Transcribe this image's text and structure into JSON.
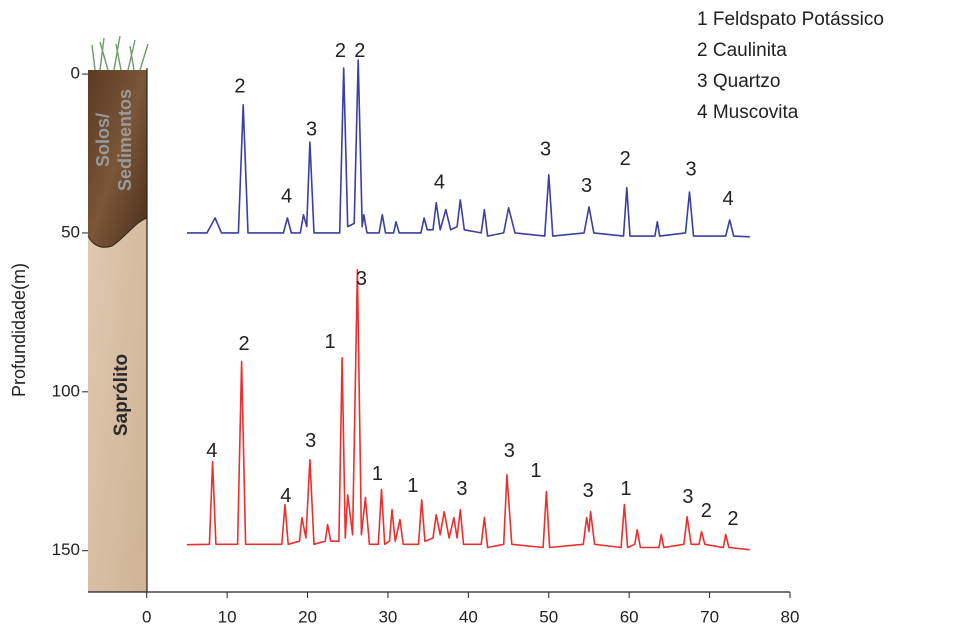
{
  "chart_data": {
    "type": "line",
    "y_label": "Profundidade(m)",
    "xlim": [
      -7.3,
      80
    ],
    "ylim": [
      -6,
      163
    ],
    "xticks": [
      0,
      10,
      20,
      30,
      40,
      50,
      60,
      70,
      80
    ],
    "yticks": [
      0,
      50,
      100,
      150
    ],
    "key": [
      "1 Feldspato Potássico",
      "2 Caulinita",
      "3 Quartzo",
      "4 Muscovita"
    ],
    "profile_labels": [
      "Solos/",
      "Sedimentos",
      "Saprólito"
    ],
    "series": [
      {
        "color": "#3a3fa0",
        "x": [
          5,
          7.5,
          8.5,
          9.3,
          11.4,
          12,
          12.6,
          17,
          17.5,
          18,
          19.1,
          19.5,
          19.9,
          20.3,
          20.8,
          24,
          24.5,
          25,
          25.8,
          26.3,
          26.8,
          27,
          27.4,
          28.9,
          29.3,
          29.7,
          30.7,
          31,
          31.4,
          34.1,
          34.5,
          34.9,
          35.6,
          36,
          36.5,
          37.2,
          37.8,
          38.6,
          39,
          39.5,
          41.6,
          42,
          42.4,
          44.4,
          45,
          45.8,
          49.5,
          50,
          50.5,
          54.4,
          55,
          55.6,
          59.3,
          59.7,
          60.1,
          63.2,
          63.5,
          63.8,
          67,
          67.5,
          68,
          72,
          72.5,
          73,
          75
        ],
        "values": [
          50,
          50,
          45.3,
          50,
          50,
          9.7,
          50,
          50,
          45.3,
          50,
          50,
          44.3,
          48,
          21.4,
          50,
          50,
          -1.9,
          48,
          47,
          -4.4,
          48,
          44.3,
          50,
          50,
          44.3,
          50,
          50,
          46.5,
          50,
          50,
          45.3,
          49,
          49,
          40.5,
          49,
          42.7,
          49,
          48,
          39.6,
          49,
          50,
          42.7,
          51,
          50,
          42.1,
          50,
          51,
          31.7,
          51,
          50,
          41.8,
          50,
          51,
          35.8,
          51,
          51,
          46.5,
          51,
          50,
          37.1,
          51,
          51,
          45.9,
          51,
          51.2
        ]
      },
      {
        "color": "#e8312f",
        "x": [
          5,
          7.8,
          8.2,
          8.6,
          11.3,
          11.8,
          12.3,
          16.8,
          17.2,
          17.6,
          19,
          19.3,
          19.8,
          20.3,
          20.8,
          22.2,
          22.5,
          22.9,
          23.9,
          24.3,
          24.7,
          25,
          25.6,
          26.2,
          26.7,
          27.2,
          27.7,
          28.8,
          29.2,
          29.6,
          30.2,
          30.5,
          30.9,
          31.5,
          31.9,
          33.8,
          34.2,
          34.6,
          35.6,
          36,
          36.5,
          37,
          37.6,
          38.2,
          38.6,
          39,
          39.4,
          41.6,
          42,
          42.4,
          44.4,
          44.8,
          45.4,
          49.3,
          49.7,
          50.1,
          54.3,
          54.7,
          55,
          55.2,
          55.7,
          59,
          59.4,
          59.8,
          60.7,
          61,
          61.4,
          63.7,
          64,
          64.3,
          66.8,
          67.2,
          67.7,
          68.7,
          69,
          69.4,
          71.7,
          72,
          72.4,
          75
        ],
        "values": [
          148.1,
          148,
          122,
          148,
          148,
          90.5,
          148,
          148,
          135.5,
          148,
          147,
          139.6,
          146,
          121.4,
          148,
          147,
          141.8,
          147,
          147,
          89.3,
          146,
          132.4,
          145,
          61.6,
          145,
          133.3,
          148,
          148,
          130.8,
          148,
          147,
          137.1,
          147,
          140.2,
          148,
          148,
          134,
          147,
          146,
          138.7,
          145,
          137.7,
          146,
          139.6,
          146,
          137.1,
          148,
          148,
          139.6,
          149,
          148,
          126.1,
          148,
          149,
          131.4,
          149,
          148,
          139.6,
          144,
          137.7,
          148,
          149,
          135.5,
          149,
          148,
          143.4,
          149,
          149,
          144.9,
          149,
          148,
          139.3,
          148,
          148,
          144,
          148,
          149,
          144.9,
          149,
          149.7
        ]
      }
    ],
    "annotations": [
      {
        "text": "2",
        "x": 11.6,
        "y": 4.1
      },
      {
        "text": "4",
        "x": 17.4,
        "y": 38.7
      },
      {
        "text": "3",
        "x": 20.5,
        "y": 17.6
      },
      {
        "text": "2",
        "x": 24.1,
        "y": -7
      },
      {
        "text": "2",
        "x": 26.5,
        "y": -7
      },
      {
        "text": "4",
        "x": 36.4,
        "y": 34.3
      },
      {
        "text": "3",
        "x": 49.6,
        "y": 23.9
      },
      {
        "text": "3",
        "x": 54.7,
        "y": 35.5
      },
      {
        "text": "2",
        "x": 59.5,
        "y": 27
      },
      {
        "text": "3",
        "x": 67.7,
        "y": 30.2
      },
      {
        "text": "4",
        "x": 72.3,
        "y": 39.6
      },
      {
        "text": "3",
        "x": 26.7,
        "y": 64.8
      },
      {
        "text": "2",
        "x": 12.1,
        "y": 85.2
      },
      {
        "text": "1",
        "x": 22.8,
        "y": 84.6
      },
      {
        "text": "4",
        "x": 8.1,
        "y": 118.8
      },
      {
        "text": "3",
        "x": 20.4,
        "y": 115.7
      },
      {
        "text": "4",
        "x": 17.3,
        "y": 133
      },
      {
        "text": "1",
        "x": 28.7,
        "y": 126.1
      },
      {
        "text": "1",
        "x": 33.1,
        "y": 129.8
      },
      {
        "text": "3",
        "x": 39.2,
        "y": 130.8
      },
      {
        "text": "3",
        "x": 45.1,
        "y": 118.8
      },
      {
        "text": "1",
        "x": 48.4,
        "y": 125.1
      },
      {
        "text": "3",
        "x": 54.9,
        "y": 131.4
      },
      {
        "text": "1",
        "x": 59.6,
        "y": 130.8
      },
      {
        "text": "3",
        "x": 67.3,
        "y": 133.3
      },
      {
        "text": "2",
        "x": 69.6,
        "y": 137.7
      },
      {
        "text": "2",
        "x": 72.9,
        "y": 140.2
      }
    ]
  }
}
